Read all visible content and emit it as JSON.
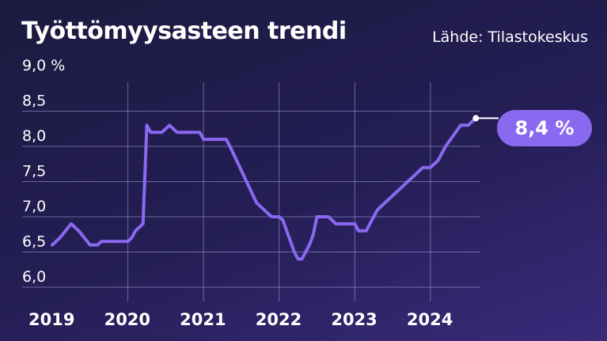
{
  "chart_data": {
    "type": "line",
    "title": "Työttömyysasteen trendi",
    "source": "Lähde: Tilastokeskus",
    "xlim": [
      2019.0,
      2024.8
    ],
    "ylim": [
      6.0,
      9.0
    ],
    "yticks": [
      {
        "value": 6.0,
        "label": "6,0"
      },
      {
        "value": 6.5,
        "label": "6,5"
      },
      {
        "value": 7.0,
        "label": "7,0"
      },
      {
        "value": 7.5,
        "label": "7,5"
      },
      {
        "value": 8.0,
        "label": "8,0"
      },
      {
        "value": 8.5,
        "label": "8,5"
      },
      {
        "value": 9.0,
        "label": "9,0 %"
      }
    ],
    "xticks": [
      {
        "value": 2019,
        "label": "2019"
      },
      {
        "value": 2020,
        "label": "2020"
      },
      {
        "value": 2021,
        "label": "2021"
      },
      {
        "value": 2022,
        "label": "2022"
      },
      {
        "value": 2023,
        "label": "2023"
      },
      {
        "value": 2024,
        "label": "2024"
      }
    ],
    "grid": true,
    "line_color": "#8a68f0",
    "series": [
      {
        "x": [
          2019.0,
          2019.1,
          2019.25,
          2019.35,
          2019.5,
          2019.6,
          2019.65,
          2020.0,
          2020.05,
          2020.1,
          2020.2,
          2020.25,
          2020.3,
          2020.45,
          2020.55,
          2020.6,
          2020.65,
          2020.95,
          2021.0,
          2021.3,
          2021.35,
          2021.7,
          2021.8,
          2021.9,
          2022.0,
          2022.05,
          2022.1,
          2022.2,
          2022.25,
          2022.3,
          2022.4,
          2022.45,
          2022.5,
          2022.65,
          2022.7,
          2022.75,
          2023.0,
          2023.05,
          2023.15,
          2023.2,
          2023.3,
          2023.4,
          2023.5,
          2023.6,
          2023.7,
          2023.8,
          2023.9,
          2024.0,
          2024.1,
          2024.2,
          2024.4,
          2024.5,
          2024.6
        ],
        "y": [
          6.6,
          6.7,
          6.9,
          6.8,
          6.6,
          6.6,
          6.65,
          6.65,
          6.7,
          6.8,
          6.9,
          8.3,
          8.2,
          8.2,
          8.3,
          8.25,
          8.2,
          8.2,
          8.1,
          8.1,
          8.0,
          7.2,
          7.1,
          7.0,
          7.0,
          6.95,
          6.8,
          6.5,
          6.4,
          6.4,
          6.6,
          6.75,
          7.0,
          7.0,
          6.95,
          6.9,
          6.9,
          6.8,
          6.8,
          6.9,
          7.1,
          7.2,
          7.3,
          7.4,
          7.5,
          7.6,
          7.7,
          7.7,
          7.8,
          8.0,
          8.3,
          8.3,
          8.4
        ]
      }
    ],
    "callout": {
      "x": 2024.6,
      "y": 8.4,
      "label": "8,4 %"
    }
  }
}
